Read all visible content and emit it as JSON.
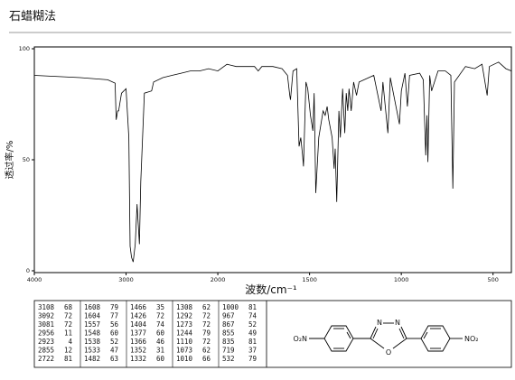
{
  "header": {
    "title": "石蜡糊法"
  },
  "chart_data": {
    "type": "line",
    "x_label": "波数/cm⁻¹",
    "y_label": "透过率/%",
    "xlim": [
      4000,
      400
    ],
    "x_scale_break": 2000,
    "ylim": [
      0,
      100
    ],
    "xticks": [
      4000,
      3000,
      2000,
      1500,
      1000,
      500
    ],
    "yticks": [
      0,
      50,
      100
    ],
    "color": "#000000",
    "x": [
      4000,
      3500,
      3200,
      3120,
      3108,
      3092,
      3081,
      3050,
      3000,
      2970,
      2956,
      2940,
      2923,
      2900,
      2880,
      2855,
      2840,
      2800,
      2722,
      2700,
      2600,
      2500,
      2400,
      2300,
      2200,
      2100,
      2000,
      1950,
      1900,
      1800,
      1780,
      1760,
      1700,
      1650,
      1620,
      1608,
      1604,
      1590,
      1570,
      1557,
      1548,
      1538,
      1533,
      1520,
      1510,
      1495,
      1482,
      1475,
      1466,
      1450,
      1426,
      1415,
      1404,
      1395,
      1377,
      1366,
      1360,
      1352,
      1340,
      1332,
      1320,
      1308,
      1300,
      1292,
      1285,
      1273,
      1260,
      1244,
      1230,
      1150,
      1110,
      1100,
      1073,
      1060,
      1010,
      1000,
      980,
      967,
      955,
      900,
      880,
      867,
      860,
      855,
      845,
      835,
      800,
      760,
      730,
      719,
      710,
      650,
      600,
      560,
      532,
      520,
      470,
      430,
      400
    ],
    "values": [
      88,
      87,
      86,
      84.5,
      68,
      72,
      72,
      80,
      82,
      60,
      11,
      6,
      4,
      12,
      30,
      12,
      40,
      80,
      81,
      85,
      87,
      88,
      89,
      90,
      90,
      91,
      90,
      93,
      92,
      92,
      90,
      92,
      92,
      91,
      88,
      79,
      77,
      90,
      91,
      56,
      60,
      52,
      47,
      85,
      82,
      70,
      63,
      80,
      35,
      60,
      72,
      70,
      74,
      68,
      60,
      46,
      55,
      31,
      72,
      60,
      82,
      62,
      80,
      72,
      82,
      72,
      85,
      79,
      85,
      88,
      72,
      85,
      62,
      87,
      66,
      81,
      89,
      74,
      88,
      89,
      86,
      52,
      70,
      49,
      88,
      81,
      90,
      90,
      88,
      37,
      85,
      92,
      91,
      93,
      79,
      92,
      94,
      91,
      90
    ]
  },
  "peak_table": {
    "columns": [
      [
        [
          3108,
          68
        ],
        [
          3092,
          72
        ],
        [
          3081,
          72
        ],
        [
          2956,
          11
        ],
        [
          2923,
          4
        ],
        [
          2855,
          12
        ],
        [
          2722,
          81
        ]
      ],
      [
        [
          1608,
          79
        ],
        [
          1604,
          77
        ],
        [
          1557,
          56
        ],
        [
          1548,
          60
        ],
        [
          1538,
          52
        ],
        [
          1533,
          47
        ],
        [
          1482,
          63
        ]
      ],
      [
        [
          1466,
          35
        ],
        [
          1426,
          72
        ],
        [
          1404,
          74
        ],
        [
          1377,
          60
        ],
        [
          1366,
          46
        ],
        [
          1352,
          31
        ],
        [
          1332,
          60
        ]
      ],
      [
        [
          1308,
          62
        ],
        [
          1292,
          72
        ],
        [
          1273,
          72
        ],
        [
          1244,
          79
        ],
        [
          1110,
          72
        ],
        [
          1073,
          62
        ],
        [
          1010,
          66
        ]
      ],
      [
        [
          1000,
          81
        ],
        [
          967,
          74
        ],
        [
          867,
          52
        ],
        [
          855,
          49
        ],
        [
          835,
          81
        ],
        [
          719,
          37
        ],
        [
          532,
          79
        ]
      ]
    ]
  },
  "structure": {
    "left_group": "O₂N",
    "right_group": "NO₂",
    "atoms": [
      "N",
      "N",
      "O"
    ]
  }
}
